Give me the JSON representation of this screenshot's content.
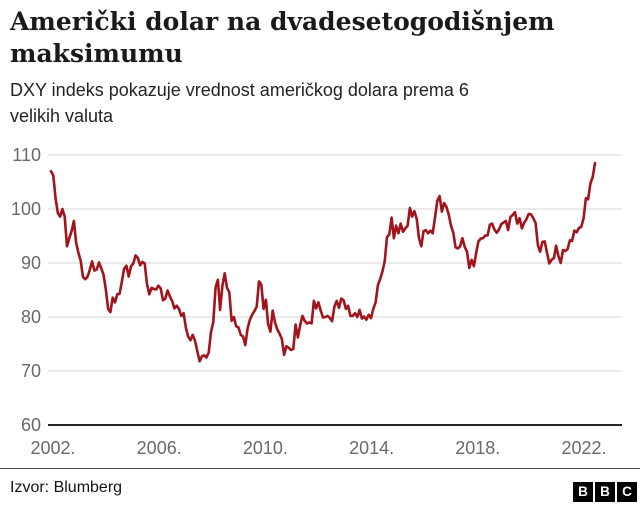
{
  "header": {
    "title_line1": "Američki dolar na dvadesetogodišnjem",
    "title_line2": "maksimumu",
    "subtitle_line1": "DXY indeks pokazuje vrednost američkog dolara prema 6",
    "subtitle_line2": "velikih valuta"
  },
  "chart_data": {
    "type": "line",
    "title": "Američki dolar na dvadesetogodišnjem maksimumu",
    "subtitle": "DXY indeks pokazuje vrednost američkog dolara prema 6 velikih valuta",
    "x_start": "2002 (late)",
    "x_end": "2022 (Aug)",
    "x_interval": "monthly",
    "x_tick_labels": [
      "2002.",
      "2006.",
      "2010.",
      "2014.",
      "2018.",
      "2022."
    ],
    "y_ticks": [
      60,
      70,
      80,
      90,
      100,
      110
    ],
    "ylim": [
      60,
      112
    ],
    "grid": true,
    "legend": "none",
    "line_color": "#a1141b",
    "grid_color": "#d6d6d6",
    "axis_color": "#262626",
    "tick_label_color": "#696969",
    "series": [
      {
        "name": "DXY",
        "values": [
          107.0,
          106.2,
          101.9,
          99.2,
          98.6,
          100.0,
          98.6,
          93.1,
          94.6,
          95.9,
          97.8,
          93.8,
          91.9,
          90.4,
          87.4,
          87.0,
          87.5,
          88.8,
          90.3,
          88.6,
          88.8,
          90.1,
          89.0,
          87.8,
          85.0,
          81.5,
          80.9,
          83.6,
          82.7,
          84.2,
          84.3,
          86.6,
          88.9,
          89.5,
          87.5,
          89.4,
          89.9,
          91.4,
          90.9,
          89.6,
          90.2,
          89.9,
          86.1,
          84.2,
          85.4,
          85.2,
          85.1,
          85.8,
          85.3,
          83.1,
          83.4,
          84.9,
          83.8,
          83.0,
          81.6,
          82.1,
          81.5,
          80.2,
          80.7,
          78.0,
          76.4,
          75.7,
          76.7,
          75.6,
          73.7,
          71.8,
          72.7,
          72.9,
          72.5,
          73.4,
          77.2,
          79.1,
          85.5,
          86.9,
          81.3,
          85.8,
          88.1,
          85.4,
          84.6,
          79.3,
          80.0,
          78.3,
          78.1,
          76.7,
          76.4,
          74.8,
          77.9,
          79.5,
          80.4,
          81.1,
          81.9,
          86.6,
          86.0,
          81.5,
          83.2,
          78.7,
          77.3,
          81.2,
          79.0,
          77.7,
          76.9,
          75.9,
          73.0,
          74.6,
          74.3,
          73.9,
          74.1,
          78.6,
          76.2,
          78.4,
          80.2,
          79.3,
          78.8,
          79.0,
          78.8,
          83.0,
          81.6,
          82.7,
          81.2,
          79.9,
          80.0,
          80.2,
          79.8,
          79.2,
          81.9,
          83.0,
          81.7,
          83.4,
          83.1,
          81.5,
          82.1,
          80.2,
          80.2,
          80.7,
          80.0,
          81.3,
          79.7,
          80.1,
          79.5,
          80.4,
          79.8,
          81.5,
          82.7,
          85.9,
          87.0,
          88.4,
          90.3,
          94.8,
          95.3,
          98.4,
          94.6,
          96.9,
          95.5,
          97.3,
          95.8,
          96.4,
          96.9,
          100.2,
          98.6,
          99.6,
          98.2,
          94.6,
          93.1,
          95.9,
          96.1,
          95.5,
          96.0,
          95.5,
          98.4,
          101.5,
          102.4,
          99.5,
          101.1,
          100.4,
          99.0,
          96.9,
          95.6,
          92.9,
          92.7,
          93.1,
          94.6,
          93.0,
          92.1,
          89.1,
          90.6,
          89.4,
          91.8,
          94.0,
          94.5,
          94.6,
          95.1,
          95.1,
          97.1,
          97.3,
          96.2,
          95.6,
          96.2,
          97.2,
          97.5,
          97.8,
          96.1,
          98.5,
          98.9,
          99.4,
          97.3,
          98.3,
          96.4,
          97.4,
          98.1,
          99.1,
          99.0,
          98.3,
          97.4,
          93.3,
          92.1,
          93.9,
          94.0,
          91.9,
          89.9,
          90.6,
          90.9,
          93.2,
          91.3,
          90.0,
          92.4,
          92.2,
          92.6,
          94.2,
          94.1,
          96.0,
          95.7,
          96.5,
          96.7,
          98.3,
          102.0,
          101.8,
          104.7,
          105.9,
          108.5
        ]
      }
    ]
  },
  "footer": {
    "source": "Izvor: Blumberg",
    "logo": [
      "B",
      "B",
      "C"
    ]
  }
}
